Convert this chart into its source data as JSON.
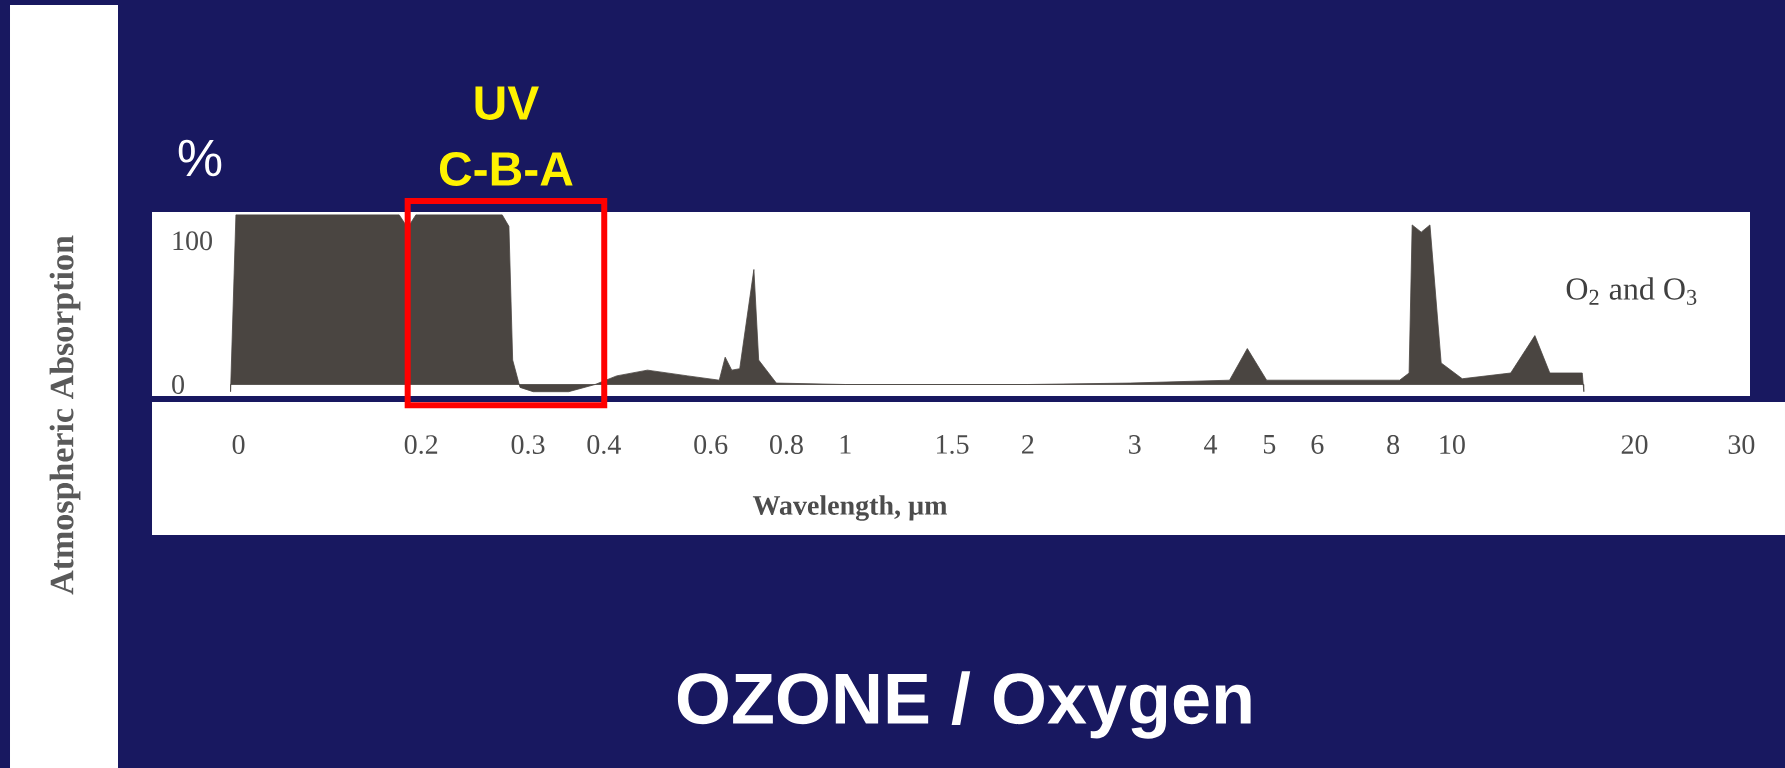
{
  "chart_data": {
    "type": "area",
    "title": "OZONE / Oxygen",
    "xlabel": "Wavelength, µm",
    "ylabel": "Atmospheric Absorption",
    "annotations": [
      "%",
      "O$_{2}$ and O$_{3}$",
      "UV C-B-A"
    ],
    "log": "x",
    "xlim": [
      0.072,
      31
    ],
    "ylim": [
      -8,
      120
    ],
    "xticks": [
      {
        "value": 0.1,
        "label": "0"
      },
      0.2,
      0.3,
      0.4,
      0.6,
      0.8,
      1,
      1.5,
      2,
      3,
      4,
      5,
      6,
      8,
      10,
      20,
      30
    ],
    "yticks": [
      0,
      100
    ],
    "series": [
      {
        "color": "#4a4541",
        "x": [
          0.097,
          0.099,
          0.184,
          0.19,
          0.196,
          0.272,
          0.279,
          0.283,
          0.291,
          0.306,
          0.35,
          0.387,
          0.42,
          0.472,
          0.55,
          0.62,
          0.634,
          0.65,
          0.67,
          0.707,
          0.72,
          0.77,
          1,
          2,
          2.95,
          4.3,
          4.6,
          4.95,
          8.2,
          8.5,
          8.6,
          8.9,
          9.2,
          9.6,
          10.4,
          12.5,
          13.7,
          14.5,
          16.4,
          16.5
        ],
        "values": [
          -5,
          118,
          118,
          109,
          118,
          118,
          110,
          17,
          -2,
          -5,
          -5,
          0,
          6,
          10,
          6,
          3,
          19,
          10,
          11,
          80,
          17,
          1,
          0,
          0,
          1,
          3,
          25,
          3,
          3,
          8,
          111,
          106,
          111,
          15,
          4,
          8,
          34,
          8,
          8,
          -5
        ]
      }
    ]
  }
}
